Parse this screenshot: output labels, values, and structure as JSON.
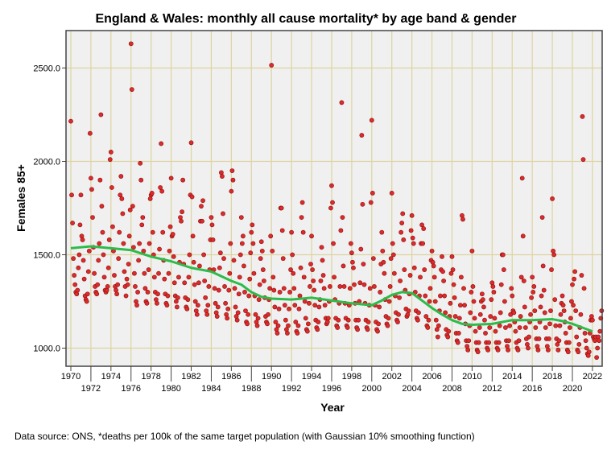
{
  "chart_data": {
    "type": "scatter",
    "title": "England & Wales: monthly all cause mortality* by age band & gender",
    "xlabel": "Year",
    "ylabel": "Females 85+",
    "caption": "Data source: ONS, *deaths per 100k of the same target population (with Gaussian 10% smoothing function)",
    "xlim": [
      1969.5,
      2022.9
    ],
    "ylim": [
      905,
      2703
    ],
    "yticks": [
      {
        "v": 1000,
        "label": "1000.0"
      },
      {
        "v": 1500,
        "label": "1500.0"
      },
      {
        "v": 2000,
        "label": "2000.0"
      },
      {
        "v": 2500,
        "label": "2500.0"
      }
    ],
    "xticks": [
      "1970",
      "1972",
      "1974",
      "1976",
      "1978",
      "1980",
      "1982",
      "1984",
      "1986",
      "1988",
      "1990",
      "1992",
      "1994",
      "1996",
      "1998",
      "2000",
      "2002",
      "2004",
      "2006",
      "2008",
      "2010",
      "2012",
      "2014",
      "2016",
      "2018",
      "2020",
      "2022"
    ],
    "grid": true,
    "colors": {
      "point": "#dd2a2a",
      "point_edge": "#8a1010",
      "smooth": "#2dbb4a",
      "plot_bg": "#f0f0f0",
      "grid": "#ddd4a0"
    },
    "monthly_series": {
      "name": "Females 85+ monthly",
      "start_year": 1970,
      "values_by_year": [
        [
          2215,
          1820,
          1670,
          1480,
          1390,
          1340,
          1300,
          1290,
          1310,
          1430,
          1500,
          1660
        ],
        [
          1820,
          1600,
          1580,
          1470,
          1370,
          1280,
          1260,
          1250,
          1290,
          1410,
          1520,
          2150
        ],
        [
          1910,
          1850,
          1700,
          1540,
          1400,
          1330,
          1300,
          1290,
          1340,
          1470,
          1560,
          1900
        ],
        [
          2250,
          1760,
          1620,
          1500,
          1380,
          1310,
          1300,
          1310,
          1330,
          1430,
          1580,
          2010
        ],
        [
          2050,
          1860,
          1650,
          1520,
          1390,
          1330,
          1310,
          1290,
          1340,
          1480,
          1620,
          1820
        ],
        [
          1920,
          1800,
          1720,
          1560,
          1410,
          1330,
          1280,
          1370,
          1340,
          1450,
          1600,
          1740
        ],
        [
          2630,
          2385,
          1760,
          1540,
          1400,
          1330,
          1250,
          1230,
          1300,
          1470,
          1560,
          1990
        ],
        [
          1900,
          1660,
          1700,
          1520,
          1400,
          1320,
          1250,
          1240,
          1300,
          1420,
          1560,
          1800
        ],
        [
          1820,
          1830,
          1620,
          1500,
          1380,
          1300,
          1260,
          1240,
          1290,
          1400,
          1530,
          1860
        ],
        [
          2095,
          1840,
          1620,
          1470,
          1370,
          1290,
          1240,
          1230,
          1280,
          1400,
          1520,
          1650
        ],
        [
          1910,
          1600,
          1610,
          1490,
          1350,
          1280,
          1250,
          1220,
          1270,
          1380,
          1460,
          1700
        ],
        [
          1680,
          1730,
          1900,
          1450,
          1350,
          1270,
          1220,
          1210,
          1260,
          1380,
          1500,
          1820
        ],
        [
          2100,
          1810,
          1600,
          1460,
          1340,
          1250,
          1200,
          1180,
          1230,
          1350,
          1440,
          1680
        ],
        [
          1760,
          1680,
          1790,
          1500,
          1360,
          1270,
          1200,
          1180,
          1230,
          1330,
          1420,
          1580
        ],
        [
          1700,
          1660,
          1580,
          1420,
          1320,
          1240,
          1190,
          1170,
          1220,
          1310,
          1430,
          1510
        ],
        [
          1940,
          1920,
          1720,
          1480,
          1330,
          1240,
          1180,
          1160,
          1210,
          1310,
          1400,
          1560
        ],
        [
          1840,
          1950,
          1900,
          1470,
          1320,
          1220,
          1170,
          1150,
          1190,
          1290,
          1380,
          1500
        ],
        [
          1700,
          1560,
          1600,
          1440,
          1300,
          1200,
          1140,
          1130,
          1180,
          1280,
          1370,
          1510
        ],
        [
          1620,
          1660,
          1560,
          1400,
          1280,
          1180,
          1140,
          1120,
          1160,
          1260,
          1340,
          1480
        ],
        [
          1570,
          1520,
          1420,
          1360,
          1270,
          1170,
          1140,
          1130,
          1180,
          1260,
          1320,
          1600
        ],
        [
          2515,
          1520,
          1380,
          1310,
          1220,
          1140,
          1100,
          1080,
          1120,
          1210,
          1300,
          1750
        ],
        [
          1750,
          1630,
          1480,
          1320,
          1230,
          1150,
          1100,
          1080,
          1120,
          1210,
          1300,
          1420
        ],
        [
          1620,
          1500,
          1400,
          1320,
          1230,
          1140,
          1090,
          1080,
          1120,
          1210,
          1280,
          1430
        ],
        [
          1700,
          1780,
          1620,
          1380,
          1250,
          1160,
          1100,
          1090,
          1130,
          1240,
          1330,
          1450
        ],
        [
          1600,
          1420,
          1360,
          1310,
          1230,
          1150,
          1110,
          1100,
          1140,
          1220,
          1260,
          1360
        ],
        [
          1540,
          1470,
          1390,
          1320,
          1230,
          1160,
          1130,
          1140,
          1160,
          1250,
          1330,
          1750
        ],
        [
          1870,
          1780,
          1560,
          1380,
          1260,
          1160,
          1120,
          1110,
          1150,
          1240,
          1330,
          1630
        ],
        [
          2315,
          1700,
          1440,
          1330,
          1240,
          1160,
          1120,
          1110,
          1150,
          1230,
          1320,
          1560
        ],
        [
          1510,
          1460,
          1430,
          1340,
          1240,
          1150,
          1110,
          1100,
          1150,
          1250,
          1350,
          1530
        ],
        [
          2140,
          1770,
          1450,
          1340,
          1240,
          1150,
          1110,
          1100,
          1140,
          1230,
          1320,
          1780
        ],
        [
          2220,
          1830,
          1480,
          1330,
          1230,
          1140,
          1100,
          1090,
          1130,
          1220,
          1300,
          1450
        ],
        [
          1620,
          1520,
          1460,
          1400,
          1260,
          1170,
          1130,
          1120,
          1160,
          1250,
          1330,
          1480
        ],
        [
          1830,
          1560,
          1500,
          1400,
          1280,
          1190,
          1150,
          1140,
          1180,
          1270,
          1360,
          1620
        ],
        [
          1670,
          1720,
          1580,
          1420,
          1310,
          1210,
          1170,
          1180,
          1200,
          1290,
          1390,
          1630
        ],
        [
          1710,
          1590,
          1560,
          1430,
          1300,
          1200,
          1160,
          1150,
          1190,
          1280,
          1380,
          1560
        ],
        [
          1660,
          1560,
          1640,
          1420,
          1280,
          1170,
          1120,
          1110,
          1150,
          1250,
          1320,
          1470
        ],
        [
          1520,
          1460,
          1440,
          1380,
          1250,
          1150,
          1100,
          1060,
          1120,
          1200,
          1280,
          1420
        ],
        [
          1490,
          1410,
          1360,
          1280,
          1190,
          1100,
          1070,
          1060,
          1090,
          1170,
          1240,
          1400
        ],
        [
          1490,
          1420,
          1340,
          1270,
          1170,
          1080,
          1040,
          1030,
          1080,
          1160,
          1230,
          1380
        ],
        [
          1710,
          1690,
          1320,
          1230,
          1130,
          1040,
          1010,
          990,
          1040,
          1120,
          1190,
          1300
        ],
        [
          1520,
          1330,
          1250,
          1160,
          1090,
          1030,
          990,
          980,
          1030,
          1110,
          1180,
          1250
        ],
        [
          1290,
          1260,
          1220,
          1150,
          1080,
          1030,
          1000,
          990,
          1030,
          1110,
          1170,
          1260
        ],
        [
          1350,
          1330,
          1300,
          1160,
          1090,
          1030,
          1000,
          990,
          1030,
          1120,
          1190,
          1340
        ],
        [
          1500,
          1500,
          1420,
          1250,
          1110,
          1040,
          1010,
          990,
          1040,
          1120,
          1180,
          1320
        ],
        [
          1280,
          1200,
          1190,
          1140,
          1090,
          1030,
          1000,
          990,
          1040,
          1110,
          1170,
          1380
        ],
        [
          1910,
          1600,
          1360,
          1220,
          1110,
          1050,
          1020,
          1000,
          1060,
          1140,
          1180,
          1270
        ],
        [
          1380,
          1300,
          1330,
          1200,
          1110,
          1050,
          1010,
          990,
          1050,
          1140,
          1220,
          1280
        ],
        [
          1700,
          1440,
          1310,
          1190,
          1110,
          1050,
          1010,
          990,
          1050,
          1130,
          1200,
          1420
        ],
        [
          1800,
          1520,
          1500,
          1260,
          1120,
          1050,
          1020,
          990,
          1040,
          1120,
          1180,
          1240
        ],
        [
          1280,
          1230,
          1200,
          1140,
          1080,
          1030,
          990,
          980,
          1030,
          1110,
          1160,
          1250
        ],
        [
          1340,
          1230,
          1370,
          1410,
          1200,
          1060,
          990,
          980,
          1020,
          1110,
          1180,
          1390
        ],
        [
          2240,
          2010,
          1320,
          1080,
          1040,
          1000,
          970,
          960,
          980,
          1080,
          1150,
          1170
        ],
        [
          1150,
          1060,
          1050,
          1040,
          1060,
          950,
          1000,
          1060,
          1040,
          1090,
          1160,
          1200
        ]
      ]
    },
    "smoothed_series": {
      "name": "Gaussian 10% smoothing",
      "x": [
        1970,
        1972,
        1974,
        1976,
        1978,
        1980,
        1982,
        1984,
        1986,
        1987,
        1988,
        1989,
        1990,
        1992,
        1994,
        1996,
        1998,
        2000,
        2001,
        2002,
        2003,
        2004,
        2005,
        2006,
        2007,
        2008,
        2009,
        2010,
        2012,
        2014,
        2016,
        2018,
        2019,
        2020,
        2021,
        2022
      ],
      "y": [
        1535,
        1545,
        1535,
        1525,
        1490,
        1465,
        1430,
        1410,
        1360,
        1340,
        1300,
        1275,
        1265,
        1260,
        1270,
        1255,
        1240,
        1230,
        1255,
        1285,
        1300,
        1295,
        1255,
        1215,
        1180,
        1150,
        1130,
        1125,
        1130,
        1150,
        1150,
        1155,
        1145,
        1130,
        1110,
        1090
      ]
    }
  }
}
